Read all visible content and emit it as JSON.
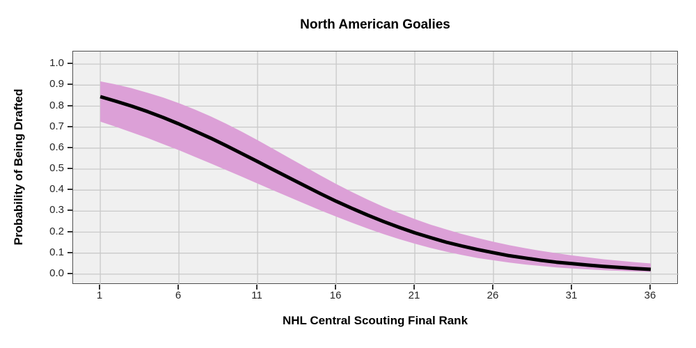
{
  "figure": {
    "title": "North American Goalies",
    "xlabel": "NHL Central Scouting Final Rank",
    "ylabel": "Probability of Being Drafted"
  },
  "chart_data": {
    "type": "line",
    "title": "North American Goalies",
    "xlabel": "NHL Central Scouting Final Rank",
    "ylabel": "Probability of Being Drafted",
    "x": [
      1,
      2,
      3,
      4,
      5,
      6,
      7,
      8,
      9,
      10,
      11,
      12,
      13,
      14,
      15,
      16,
      17,
      18,
      19,
      20,
      21,
      22,
      23,
      24,
      25,
      26,
      27,
      28,
      29,
      30,
      31,
      32,
      33,
      34,
      35,
      36
    ],
    "series": [
      {
        "name": "fitted_probability",
        "values": [
          0.845,
          0.823,
          0.8,
          0.774,
          0.746,
          0.715,
          0.682,
          0.648,
          0.612,
          0.574,
          0.536,
          0.497,
          0.459,
          0.421,
          0.383,
          0.347,
          0.313,
          0.281,
          0.251,
          0.223,
          0.197,
          0.174,
          0.152,
          0.134,
          0.117,
          0.102,
          0.088,
          0.077,
          0.066,
          0.057,
          0.05,
          0.043,
          0.037,
          0.032,
          0.027,
          0.023
        ]
      },
      {
        "name": "ci_upper",
        "values": [
          0.918,
          0.903,
          0.885,
          0.864,
          0.841,
          0.814,
          0.784,
          0.752,
          0.716,
          0.678,
          0.638,
          0.596,
          0.554,
          0.512,
          0.47,
          0.429,
          0.391,
          0.355,
          0.321,
          0.291,
          0.262,
          0.236,
          0.213,
          0.191,
          0.172,
          0.154,
          0.138,
          0.124,
          0.111,
          0.1,
          0.089,
          0.08,
          0.071,
          0.064,
          0.057,
          0.051
        ]
      },
      {
        "name": "ci_lower",
        "values": [
          0.726,
          0.701,
          0.675,
          0.648,
          0.619,
          0.59,
          0.559,
          0.528,
          0.496,
          0.464,
          0.431,
          0.399,
          0.367,
          0.335,
          0.304,
          0.274,
          0.245,
          0.217,
          0.191,
          0.167,
          0.145,
          0.125,
          0.107,
          0.091,
          0.077,
          0.066,
          0.055,
          0.046,
          0.039,
          0.032,
          0.027,
          0.023,
          0.019,
          0.016,
          0.013,
          0.011
        ]
      }
    ],
    "x_ticks": [
      1,
      6,
      11,
      16,
      21,
      26,
      31,
      36
    ],
    "y_ticks": [
      0.0,
      0.1,
      0.2,
      0.3,
      0.4,
      0.5,
      0.6,
      0.7,
      0.8,
      0.9,
      1.0
    ],
    "y_tick_labels": [
      "0.0",
      "0.1",
      "0.2",
      "0.3",
      "0.4",
      "0.5",
      "0.6",
      "0.7",
      "0.8",
      "0.9",
      "1.0"
    ],
    "xlim": [
      -0.73,
      37.77
    ],
    "ylim": [
      -0.05,
      1.06
    ],
    "grid": "major",
    "legend": "none",
    "colors": {
      "band": "#DCA0D7",
      "line": "#000000",
      "panel_background": "#F0F0F0",
      "gridline": "#C9C9C9",
      "panel_border": "#4D4D4D",
      "tick": "#333333",
      "text": "#000000"
    }
  }
}
